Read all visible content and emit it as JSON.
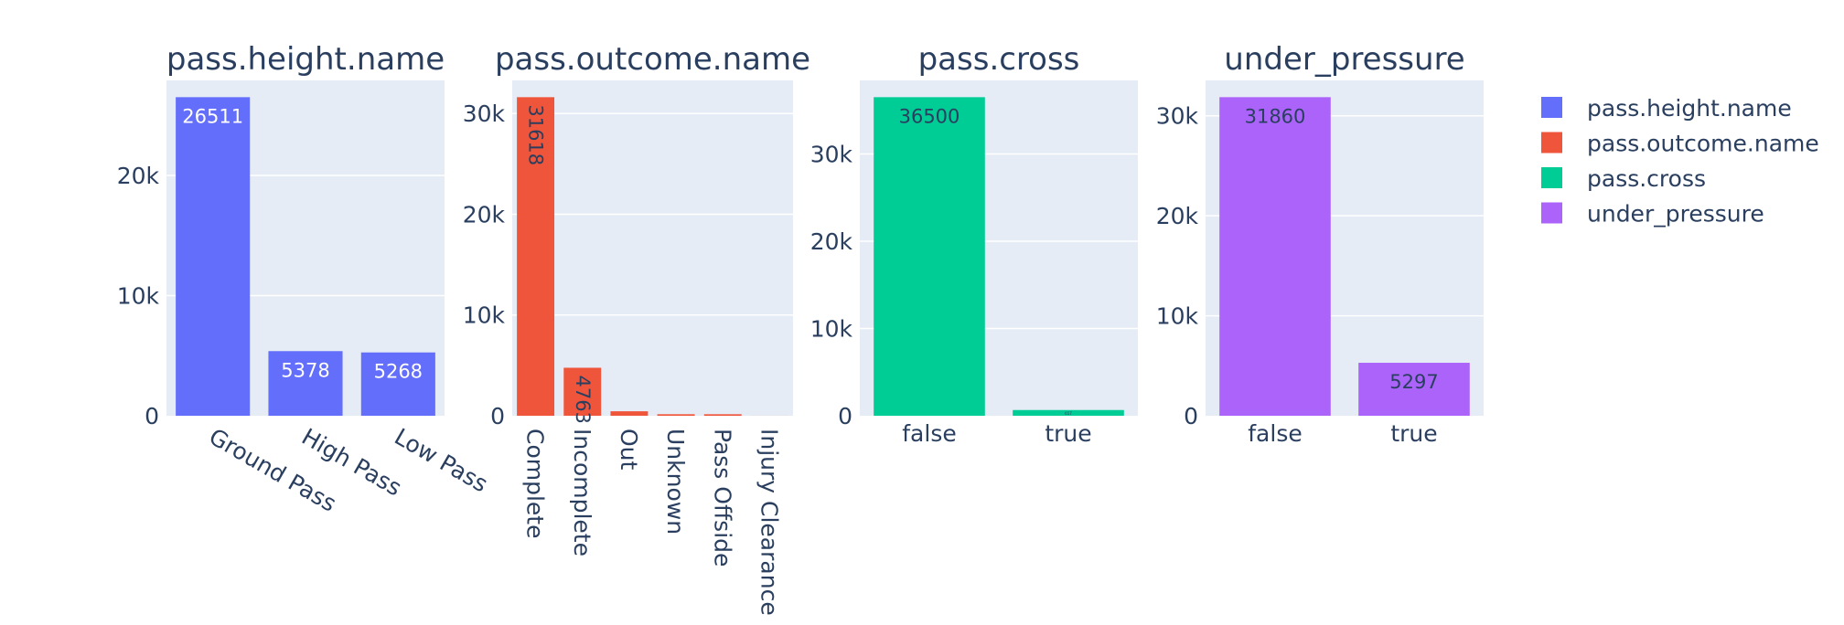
{
  "chart_data": [
    {
      "type": "bar",
      "title": "pass.height.name",
      "categories": [
        "Ground Pass",
        "High Pass",
        "Low Pass"
      ],
      "values": [
        26511,
        5378,
        5268
      ],
      "value_labels": [
        "26511",
        "5378",
        "5268"
      ],
      "label_orientation": "horizontal",
      "yticks": [
        0,
        10000,
        20000
      ],
      "ytick_labels": [
        "0",
        "10k",
        "20k"
      ],
      "ylim": [
        0,
        27906
      ],
      "xtick_rotation": 30,
      "color": "#636efa",
      "label_color": "#ffffff"
    },
    {
      "type": "bar",
      "title": "pass.outcome.name",
      "categories": [
        "Complete",
        "Incomplete",
        "Out",
        "Unknown",
        "Pass Offside",
        "Injury Clearance"
      ],
      "values": [
        31618,
        4763,
        444,
        152,
        150,
        4
      ],
      "value_labels": [
        "31618",
        "4763",
        "",
        "",
        "",
        ""
      ],
      "label_orientation": "vertical",
      "yticks": [
        0,
        10000,
        20000,
        30000
      ],
      "ytick_labels": [
        "0",
        "10k",
        "20k",
        "30k"
      ],
      "ylim": [
        0,
        33282
      ],
      "xtick_rotation": 90,
      "color": "#ef553b",
      "label_color": "#2a3f5f"
    },
    {
      "type": "bar",
      "title": "pass.cross",
      "categories": [
        "false",
        "true"
      ],
      "values": [
        36500,
        657
      ],
      "value_labels": [
        "36500",
        "657"
      ],
      "label_orientation": "horizontal",
      "yticks": [
        0,
        10000,
        20000,
        30000
      ],
      "ytick_labels": [
        "0",
        "10k",
        "20k",
        "30k"
      ],
      "ylim": [
        0,
        38421
      ],
      "xtick_rotation": 0,
      "color": "#00cc96",
      "label_color": "#2a3f5f"
    },
    {
      "type": "bar",
      "title": "under_pressure",
      "categories": [
        "false",
        "true"
      ],
      "values": [
        31860,
        5297
      ],
      "value_labels": [
        "31860",
        "5297"
      ],
      "label_orientation": "horizontal",
      "yticks": [
        0,
        10000,
        20000,
        30000
      ],
      "ytick_labels": [
        "0",
        "10k",
        "20k",
        "30k"
      ],
      "ylim": [
        0,
        33537
      ],
      "xtick_rotation": 0,
      "color": "#ab63fa",
      "label_color": "#2a3f5f"
    }
  ],
  "legend": {
    "position": "top-right",
    "items": [
      {
        "label": "pass.height.name",
        "color": "#636efa"
      },
      {
        "label": "pass.outcome.name",
        "color": "#ef553b"
      },
      {
        "label": "pass.cross",
        "color": "#00cc96"
      },
      {
        "label": "under_pressure",
        "color": "#ab63fa"
      }
    ]
  },
  "colors": {
    "plot_background": "#e5ecf6",
    "gridline": "#ffffff",
    "text": "#2a3f5f"
  }
}
